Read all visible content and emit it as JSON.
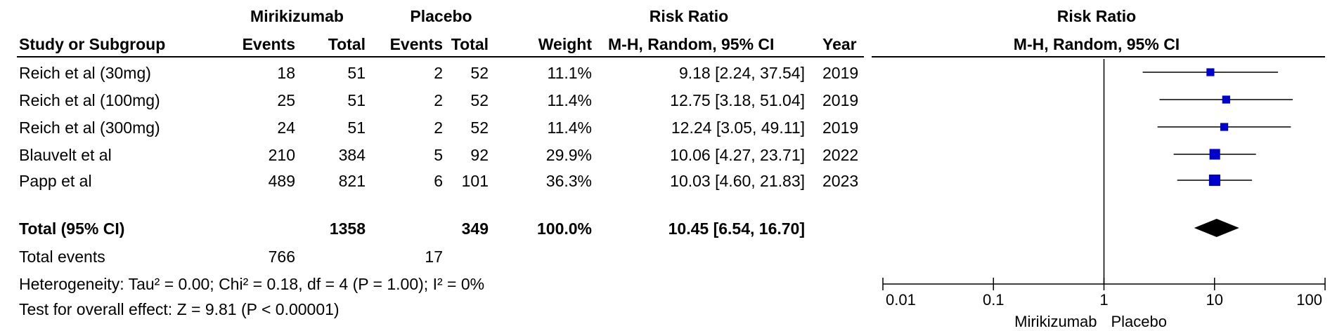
{
  "headers": {
    "group1": "Mirikizumab",
    "group2": "Placebo",
    "rr_left": "Risk Ratio",
    "rr_right": "Risk Ratio",
    "study": "Study or Subgroup",
    "events1": "Events",
    "total1": "Total",
    "events2": "Events",
    "total2": "Total",
    "weight": "Weight",
    "method_left": "M-H, Random, 95% CI",
    "year": "Year",
    "method_right": "M-H, Random, 95% CI"
  },
  "studies": [
    {
      "name": "Reich et al (30mg)",
      "e1": "18",
      "t1": "51",
      "e2": "2",
      "t2": "52",
      "weight": "11.1%",
      "ci": "9.18 [2.24, 37.54]",
      "year": "2019"
    },
    {
      "name": "Reich et al (100mg)",
      "e1": "25",
      "t1": "51",
      "e2": "2",
      "t2": "52",
      "weight": "11.4%",
      "ci": "12.75 [3.18, 51.04]",
      "year": "2019"
    },
    {
      "name": "Reich et al (300mg)",
      "e1": "24",
      "t1": "51",
      "e2": "2",
      "t2": "52",
      "weight": "11.4%",
      "ci": "12.24 [3.05, 49.11]",
      "year": "2019"
    },
    {
      "name": "Blauvelt et al",
      "e1": "210",
      "t1": "384",
      "e2": "5",
      "t2": "92",
      "weight": "29.9%",
      "ci": "10.06 [4.27, 23.71]",
      "year": "2022"
    },
    {
      "name": "Papp et al",
      "e1": "489",
      "t1": "821",
      "e2": "6",
      "t2": "101",
      "weight": "36.3%",
      "ci": "10.03 [4.60, 21.83]",
      "year": "2023"
    }
  ],
  "total": {
    "label": "Total (95% CI)",
    "t1": "1358",
    "t2": "349",
    "weight": "100.0%",
    "ci": "10.45 [6.54, 16.70]"
  },
  "events": {
    "label": "Total events",
    "e1": "766",
    "e2": "17"
  },
  "heterogeneity": "Heterogeneity: Tau² = 0.00; Chi² = 0.18, df = 4 (P = 1.00); I² = 0%",
  "overall_effect": "Test for overall effect: Z = 9.81 (P < 0.00001)",
  "axis_labels": {
    "favours_left": "Mirikizumab",
    "favours_right": "Placebo"
  },
  "chart_data": {
    "type": "scatter",
    "scale": "log",
    "xlim": [
      0.01,
      100
    ],
    "ticks": [
      0.01,
      0.1,
      1,
      10,
      100
    ],
    "tick_labels": [
      "0.01",
      "0.1",
      "1",
      "10",
      "100"
    ],
    "reference_line": 1,
    "marker_color": "#0000cc",
    "points": [
      {
        "label": "Reich et al (30mg)",
        "rr": 9.18,
        "lo": 2.24,
        "hi": 37.54,
        "weight": 11.1
      },
      {
        "label": "Reich et al (100mg)",
        "rr": 12.75,
        "lo": 3.18,
        "hi": 51.04,
        "weight": 11.4
      },
      {
        "label": "Reich et al (300mg)",
        "rr": 12.24,
        "lo": 3.05,
        "hi": 49.11,
        "weight": 11.4
      },
      {
        "label": "Blauvelt et al",
        "rr": 10.06,
        "lo": 4.27,
        "hi": 23.71,
        "weight": 29.9
      },
      {
        "label": "Papp et al",
        "rr": 10.03,
        "lo": 4.6,
        "hi": 21.83,
        "weight": 36.3
      }
    ],
    "pooled": {
      "label": "Total (95% CI)",
      "rr": 10.45,
      "lo": 6.54,
      "hi": 16.7
    }
  }
}
